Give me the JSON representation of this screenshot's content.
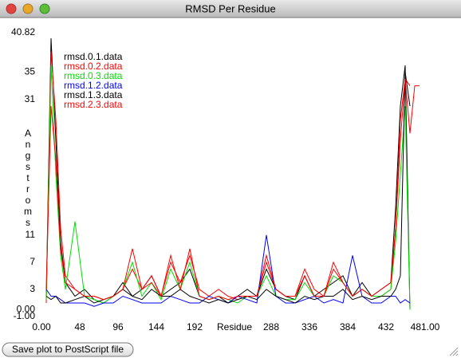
{
  "chart_data": {
    "type": "line",
    "title": "RMSD Per Residue",
    "xlabel": "Residue",
    "ylabel": "Angstroms",
    "x": [
      6,
      12,
      18,
      24,
      30,
      42,
      54,
      66,
      78,
      90,
      102,
      114,
      126,
      138,
      150,
      162,
      174,
      186,
      198,
      210,
      222,
      234,
      246,
      258,
      270,
      282,
      294,
      306,
      318,
      330,
      342,
      354,
      366,
      378,
      390,
      402,
      414,
      426,
      438,
      444,
      450,
      456,
      462,
      468,
      474
    ],
    "series": [
      {
        "name": "rmsd.0.1.data",
        "color": "#000000",
        "values": [
          2,
          40,
          25,
          10,
          4,
          2,
          3,
          1.5,
          1,
          2,
          4,
          2,
          3,
          5,
          2,
          3,
          4,
          6,
          2,
          1.5,
          2,
          1,
          2,
          3,
          2,
          6,
          3,
          2,
          1.5,
          5,
          2,
          3,
          4,
          5,
          2,
          4,
          2,
          3,
          4,
          15,
          30,
          36,
          0,
          null,
          null
        ]
      },
      {
        "name": "rmsd.0.2.data",
        "color": "#ff0000",
        "values": [
          1,
          38,
          28,
          12,
          5,
          3,
          2,
          2,
          1.5,
          2,
          3,
          6,
          3,
          5,
          2,
          7,
          4,
          8,
          3,
          2,
          3,
          2,
          1.5,
          2,
          2,
          8,
          3,
          2,
          2,
          6,
          3,
          2,
          7,
          4,
          2,
          3,
          2,
          2,
          3,
          12,
          25,
          34,
          33,
          null,
          null
        ]
      },
      {
        "name": "rmsd.0.3.data",
        "color": "#00e000",
        "values": [
          1.5,
          36,
          20,
          8,
          3,
          13,
          2,
          1.5,
          1,
          2,
          3,
          7,
          2,
          4,
          1.5,
          6,
          3,
          7,
          2,
          1.5,
          2,
          1.5,
          1,
          2,
          2,
          5,
          2,
          1.5,
          1.5,
          4,
          2,
          2,
          5,
          4,
          2,
          3,
          2,
          2,
          3,
          10,
          20,
          30,
          0,
          null,
          null
        ]
      },
      {
        "name": "rmsd.1.2.data",
        "color": "#0000ff",
        "values": [
          3,
          2,
          2,
          1.5,
          1,
          1,
          1,
          0.5,
          1,
          1,
          2,
          1.5,
          1,
          1,
          1,
          2,
          1.5,
          1,
          1,
          2,
          1.5,
          1,
          2,
          1.5,
          1,
          11,
          2,
          1,
          1,
          1.5,
          2,
          1,
          1.5,
          1,
          8,
          2,
          1,
          1,
          2,
          2,
          1,
          1.5,
          1,
          null,
          null
        ]
      },
      {
        "name": "rmsd.1.3.data",
        "color": "#000000",
        "values": [
          2,
          1.5,
          2,
          1,
          1,
          1.5,
          2,
          1,
          1.5,
          2,
          3,
          2,
          1.5,
          3,
          2,
          2,
          3,
          2,
          1.5,
          1,
          1.5,
          1,
          1.5,
          2,
          1.5,
          3,
          2,
          1.5,
          1,
          2,
          1.5,
          2,
          2,
          3,
          1.5,
          2,
          1.5,
          2,
          2,
          3,
          5,
          35,
          30,
          null,
          null
        ]
      },
      {
        "name": "rmsd.2.3.data",
        "color": "#ff0000",
        "values": [
          3,
          30,
          22,
          9,
          4,
          3,
          2,
          2,
          1.5,
          2,
          3,
          9,
          3,
          4,
          2,
          8,
          3,
          9,
          2,
          1.5,
          2,
          1.5,
          2,
          2,
          2,
          7,
          3,
          2,
          2,
          5,
          2,
          2,
          6,
          4,
          2,
          3,
          2,
          3,
          4,
          12,
          28,
          34,
          26,
          33,
          33
        ]
      }
    ],
    "xlim": [
      0,
      481
    ],
    "xticks": [
      {
        "value": 0,
        "label": "0.00"
      },
      48,
      96,
      144,
      192,
      288,
      336,
      384,
      432,
      {
        "value": 481,
        "label": "481.00"
      }
    ],
    "ylim": [
      -1,
      40.82
    ],
    "yticks": [
      {
        "value": 40.82,
        "label": "40.82"
      },
      35,
      31,
      11,
      7,
      3,
      {
        "value": 0,
        "label": "0.00"
      },
      {
        "value": -1,
        "label": "-1.00"
      }
    ]
  },
  "button": "Save plot to PostScript file"
}
